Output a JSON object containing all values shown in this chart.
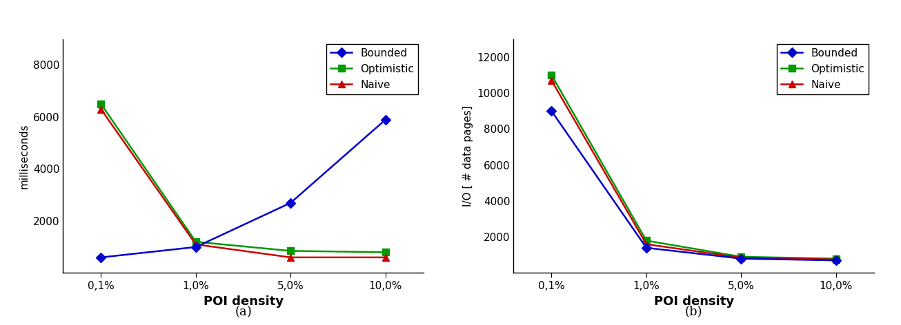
{
  "x_labels": [
    "0,1%",
    "1,0%",
    "5,0%",
    "10,0%"
  ],
  "x_values": [
    0,
    1,
    2,
    3
  ],
  "plot_a": {
    "ylabel": "milliseconds",
    "xlabel": "POI density",
    "ylim": [
      0,
      9000
    ],
    "yticks": [
      2000,
      4000,
      6000,
      8000
    ],
    "bounded": [
      600,
      1000,
      2700,
      5900
    ],
    "optimistic": [
      6500,
      1200,
      850,
      800
    ],
    "naive": [
      6300,
      1100,
      600,
      600
    ],
    "caption": "(a)"
  },
  "plot_b": {
    "ylabel": "I/O [ # data pages]",
    "xlabel": "POI density",
    "ylim": [
      0,
      13000
    ],
    "yticks": [
      2000,
      4000,
      6000,
      8000,
      10000,
      12000
    ],
    "bounded": [
      9000,
      1400,
      800,
      700
    ],
    "optimistic": [
      11000,
      1800,
      900,
      800
    ],
    "naive": [
      10700,
      1600,
      850,
      750
    ],
    "caption": "(b)"
  },
  "legend_labels": [
    "Bounded",
    "Optimistic",
    "Naive"
  ],
  "colors": {
    "bounded": "#0000CC",
    "optimistic": "#009900",
    "naive": "#CC0000"
  },
  "markers": {
    "bounded": "D",
    "optimistic": "s",
    "naive": "^"
  },
  "markersize": 7,
  "linewidth": 1.8,
  "background_color": "#ffffff",
  "fig_width": 13.06,
  "fig_height": 4.72,
  "dpi": 100
}
